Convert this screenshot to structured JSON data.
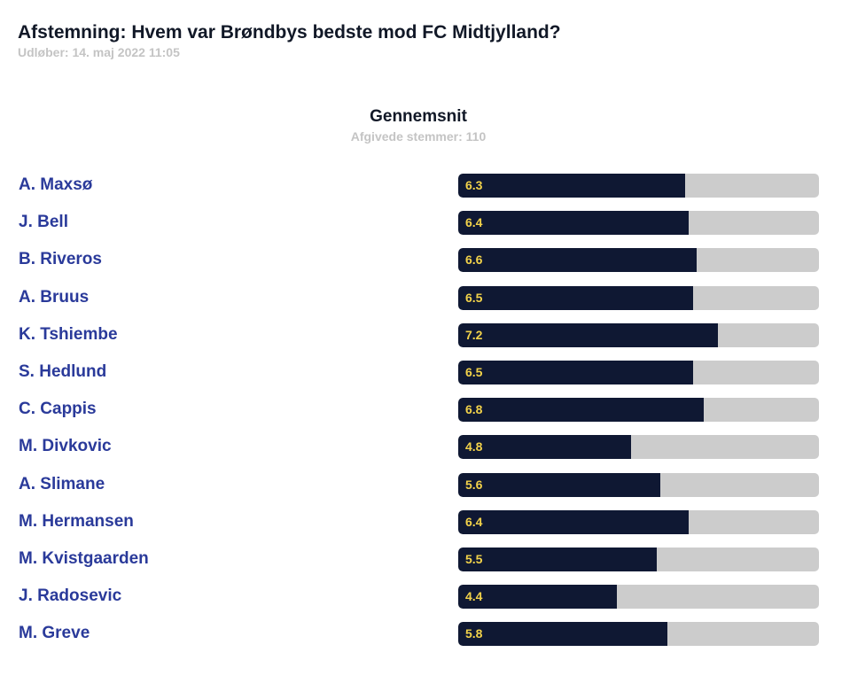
{
  "poll": {
    "title": "Afstemning: Hvem var Brøndbys bedste mod FC Midtjylland?",
    "expiry": "Udløber: 14. maj 2022 11:05"
  },
  "colors": {
    "name_text": "#2a3a9a",
    "bar_fill": "#0f1833",
    "bar_track": "#cccccc",
    "value_text": "#f2d24a"
  },
  "chart_data": {
    "type": "bar",
    "orientation": "horizontal",
    "title": "Gennemsnit",
    "subtitle": "Afgivede stemmer: 110",
    "xlim": [
      0,
      10
    ],
    "grid": false,
    "categories": [
      "A. Maxsø",
      "J. Bell",
      "B. Riveros",
      "A. Bruus",
      "K. Tshiembe",
      "S. Hedlund",
      "C. Cappis",
      "M. Divkovic",
      "A. Slimane",
      "M. Hermansen",
      "M. Kvistgaarden",
      "J. Radosevic",
      "M. Greve"
    ],
    "values": [
      6.3,
      6.4,
      6.6,
      6.5,
      7.2,
      6.5,
      6.8,
      4.8,
      5.6,
      6.4,
      5.5,
      4.4,
      5.8
    ],
    "labels": [
      "6.3",
      "6.4",
      "6.6",
      "6.5",
      "7.2",
      "6.5",
      "6.8",
      "4.8",
      "5.6",
      "6.4",
      "5.5",
      "4.4",
      "5.8"
    ]
  }
}
